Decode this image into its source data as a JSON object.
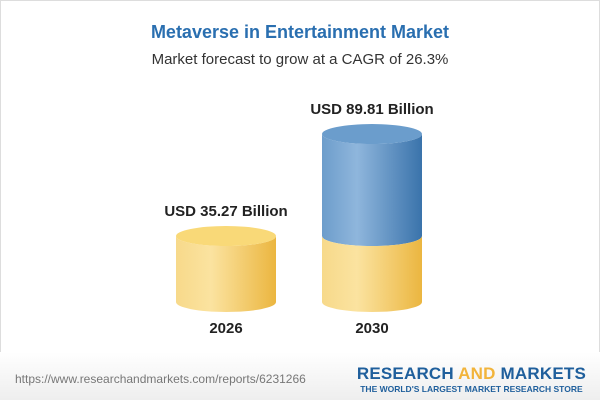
{
  "chart_data": {
    "type": "bar",
    "title": "Metaverse in Entertainment Market",
    "subtitle": "Market forecast to grow at a CAGR of 26.3%",
    "categories": [
      "2026",
      "2030"
    ],
    "values": [
      35.27,
      89.81
    ],
    "data_labels": [
      "USD 35.27 Billion",
      "USD 89.81 Billion"
    ],
    "colors": {
      "base": "#f2c45a",
      "growth": "#4d86bd",
      "title": "#2a6fb0"
    }
  },
  "footer": {
    "url": "https://www.researchandmarkets.com/reports/6231266",
    "logo_part1": "RESEARCH ",
    "logo_part2": "AND",
    "logo_part3": " MARKETS",
    "tagline": "THE WORLD'S LARGEST MARKET RESEARCH STORE"
  }
}
